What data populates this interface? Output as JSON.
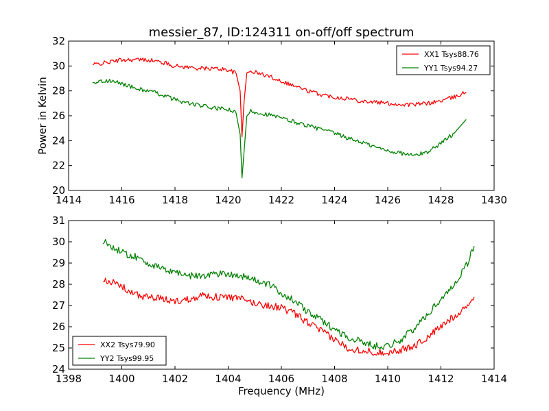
{
  "title": "messier_87, ID:124311 on-off/off spectrum",
  "ylabel": "Power in Kelvin",
  "xlabel": "Frequency (MHz)",
  "chart_data": [
    {
      "type": "line",
      "title": "messier_87, ID:124311 on-off/off spectrum",
      "ylabel": "Power in Kelvin",
      "xlabel": "",
      "xlim": [
        1414,
        1430
      ],
      "ylim": [
        20,
        32
      ],
      "xticks": [
        1414,
        1416,
        1418,
        1420,
        1422,
        1424,
        1426,
        1428,
        1430
      ],
      "yticks": [
        20,
        22,
        24,
        26,
        28,
        30,
        32
      ],
      "legend_position": "top-right",
      "grid": false,
      "series": [
        {
          "name": "XX1 Tsys88.76",
          "color": "#ff0000",
          "x": [
            1414.9,
            1415.5,
            1416.0,
            1416.5,
            1417.0,
            1417.5,
            1418.0,
            1418.5,
            1419.0,
            1419.5,
            1420.0,
            1420.3,
            1420.45,
            1420.52,
            1420.6,
            1420.7,
            1420.85,
            1421.0,
            1421.5,
            1422.0,
            1422.5,
            1423.0,
            1423.5,
            1424.0,
            1424.5,
            1425.0,
            1425.5,
            1426.0,
            1426.5,
            1427.0,
            1427.5,
            1428.0,
            1428.5,
            1428.95
          ],
          "values": [
            30.1,
            30.3,
            30.5,
            30.5,
            30.5,
            30.3,
            30.0,
            29.9,
            29.8,
            29.8,
            29.7,
            29.4,
            28.0,
            24.3,
            27.2,
            29.4,
            29.6,
            29.5,
            29.2,
            28.8,
            28.4,
            28.0,
            27.7,
            27.5,
            27.4,
            27.2,
            27.1,
            27.0,
            26.9,
            26.9,
            27.0,
            27.2,
            27.5,
            27.9
          ]
        },
        {
          "name": "YY1 Tsys94.27",
          "color": "#008000",
          "x": [
            1414.9,
            1415.5,
            1416.0,
            1416.5,
            1417.0,
            1417.5,
            1418.0,
            1418.5,
            1419.0,
            1419.5,
            1420.0,
            1420.3,
            1420.45,
            1420.52,
            1420.6,
            1420.7,
            1420.85,
            1421.0,
            1421.5,
            1422.0,
            1422.5,
            1423.0,
            1423.5,
            1424.0,
            1424.5,
            1425.0,
            1425.5,
            1426.0,
            1426.5,
            1427.0,
            1427.5,
            1428.0,
            1428.5,
            1428.95
          ],
          "values": [
            28.7,
            28.8,
            28.6,
            28.2,
            28.0,
            27.7,
            27.3,
            27.0,
            26.8,
            26.6,
            26.5,
            26.2,
            24.5,
            21.0,
            23.2,
            25.9,
            26.4,
            26.3,
            26.1,
            25.8,
            25.5,
            25.2,
            24.9,
            24.6,
            24.2,
            23.9,
            23.5,
            23.2,
            23.0,
            22.8,
            23.1,
            23.8,
            24.6,
            25.7
          ]
        }
      ]
    },
    {
      "type": "line",
      "title": "",
      "ylabel": "",
      "xlabel": "Frequency (MHz)",
      "xlim": [
        1398,
        1414
      ],
      "ylim": [
        24,
        31
      ],
      "xticks": [
        1398,
        1400,
        1402,
        1404,
        1406,
        1408,
        1410,
        1412,
        1414
      ],
      "yticks": [
        24,
        25,
        26,
        27,
        28,
        29,
        30,
        31
      ],
      "legend_position": "bottom-left",
      "grid": false,
      "series": [
        {
          "name": "XX2 Tsys79.90",
          "color": "#ff0000",
          "x": [
            1399.3,
            1399.6,
            1400.0,
            1400.5,
            1401.0,
            1401.5,
            1402.0,
            1402.5,
            1403.0,
            1403.5,
            1404.0,
            1404.5,
            1405.0,
            1405.5,
            1406.0,
            1406.5,
            1407.0,
            1407.5,
            1408.0,
            1408.5,
            1409.0,
            1409.5,
            1410.0,
            1410.5,
            1411.0,
            1411.5,
            1412.0,
            1412.5,
            1413.0,
            1413.25
          ],
          "values": [
            28.3,
            28.1,
            27.9,
            27.5,
            27.4,
            27.3,
            27.2,
            27.3,
            27.5,
            27.4,
            27.4,
            27.3,
            27.1,
            27.0,
            26.9,
            26.6,
            26.2,
            25.8,
            25.4,
            25.0,
            24.9,
            24.8,
            24.8,
            24.9,
            25.1,
            25.5,
            26.0,
            26.5,
            27.0,
            27.4
          ]
        },
        {
          "name": "YY2 Tsys99.95",
          "color": "#008000",
          "x": [
            1399.3,
            1399.6,
            1400.0,
            1400.5,
            1401.0,
            1401.5,
            1402.0,
            1402.5,
            1403.0,
            1403.5,
            1404.0,
            1404.5,
            1405.0,
            1405.5,
            1406.0,
            1406.5,
            1407.0,
            1407.5,
            1408.0,
            1408.5,
            1409.0,
            1409.5,
            1410.0,
            1410.5,
            1411.0,
            1411.5,
            1412.0,
            1412.5,
            1413.0,
            1413.25
          ],
          "values": [
            30.0,
            29.8,
            29.5,
            29.3,
            29.0,
            28.7,
            28.6,
            28.4,
            28.4,
            28.5,
            28.5,
            28.4,
            28.2,
            28.0,
            27.6,
            27.2,
            26.7,
            26.3,
            25.9,
            25.5,
            25.3,
            25.1,
            25.1,
            25.4,
            25.9,
            26.6,
            27.3,
            28.0,
            29.0,
            29.8
          ]
        }
      ]
    }
  ]
}
